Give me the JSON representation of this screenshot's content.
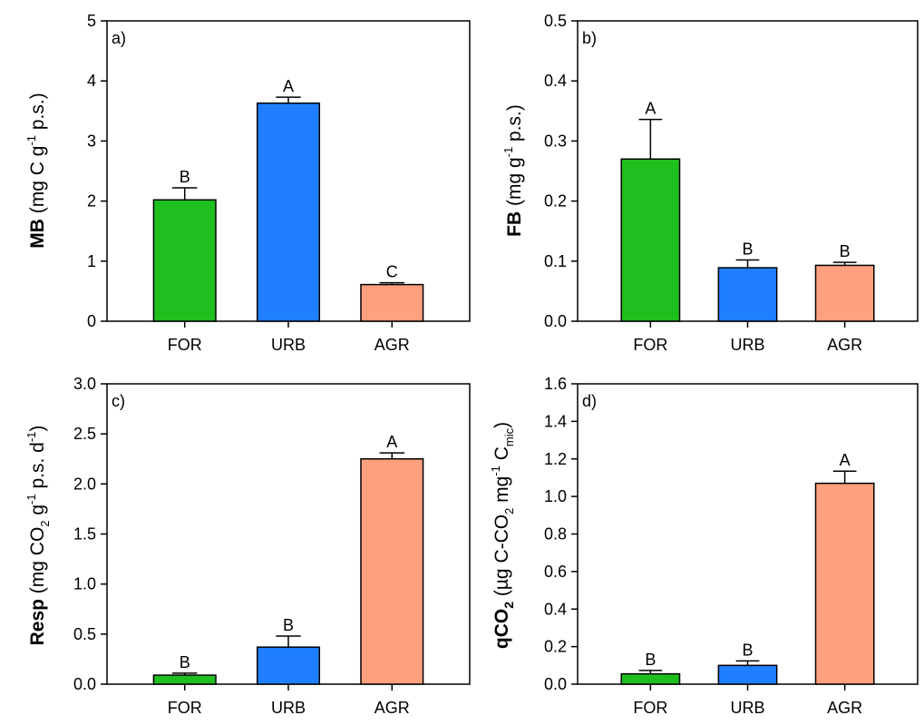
{
  "colors": {
    "FOR": "#1fbf1f",
    "URB": "#1f7fff",
    "AGR": "#ffa07f"
  },
  "chart_data": [
    {
      "type": "bar",
      "panel": "a)",
      "ylabel": {
        "bold": "MB",
        "rest": " (mg C g⁻¹ p.s.)"
      },
      "categories": [
        "FOR",
        "URB",
        "AGR"
      ],
      "values": [
        2.02,
        3.63,
        0.61
      ],
      "errors": [
        0.2,
        0.1,
        0.03
      ],
      "letters": [
        "B",
        "A",
        "C"
      ],
      "ylim": [
        0,
        5
      ],
      "yticks": [
        "0",
        "1",
        "2",
        "3",
        "4",
        "5"
      ],
      "ytick_values": [
        0,
        1,
        2,
        3,
        4,
        5
      ]
    },
    {
      "type": "bar",
      "panel": "b)",
      "ylabel": {
        "bold": "FB",
        "rest": " (mg g⁻¹ p.s.)"
      },
      "categories": [
        "FOR",
        "URB",
        "AGR"
      ],
      "values": [
        0.27,
        0.089,
        0.093
      ],
      "errors": [
        0.066,
        0.013,
        0.005
      ],
      "letters": [
        "A",
        "B",
        "B"
      ],
      "ylim": [
        0,
        0.5
      ],
      "yticks": [
        "0.0",
        "0.1",
        "0.2",
        "0.3",
        "0.4",
        "0.5"
      ],
      "ytick_values": [
        0,
        0.1,
        0.2,
        0.3,
        0.4,
        0.5
      ]
    },
    {
      "type": "bar",
      "panel": "c)",
      "ylabel": {
        "bold": "Resp",
        "rest": " (mg CO₂ g⁻¹ p.s. d⁻¹)"
      },
      "categories": [
        "FOR",
        "URB",
        "AGR"
      ],
      "values": [
        0.09,
        0.37,
        2.25
      ],
      "errors": [
        0.02,
        0.11,
        0.06
      ],
      "letters": [
        "B",
        "B",
        "A"
      ],
      "ylim": [
        0,
        3
      ],
      "yticks": [
        "0.0",
        "0.5",
        "1.0",
        "1.5",
        "2.0",
        "2.5",
        "3.0"
      ],
      "ytick_values": [
        0,
        0.5,
        1,
        1.5,
        2,
        2.5,
        3
      ]
    },
    {
      "type": "bar",
      "panel": "d)",
      "ylabel": {
        "bold": "qCO₂",
        "rest": " (µg C-CO₂ mg⁻¹ C_mic)"
      },
      "categories": [
        "FOR",
        "URB",
        "AGR"
      ],
      "values": [
        0.055,
        0.1,
        1.07
      ],
      "errors": [
        0.018,
        0.024,
        0.065
      ],
      "letters": [
        "B",
        "B",
        "A"
      ],
      "ylim": [
        0,
        1.6
      ],
      "yticks": [
        "0.0",
        "0.2",
        "0.4",
        "0.6",
        "0.8",
        "1.0",
        "1.2",
        "1.4",
        "1.6"
      ],
      "ytick_values": [
        0,
        0.2,
        0.4,
        0.6,
        0.8,
        1,
        1.2,
        1.4,
        1.6
      ]
    }
  ]
}
